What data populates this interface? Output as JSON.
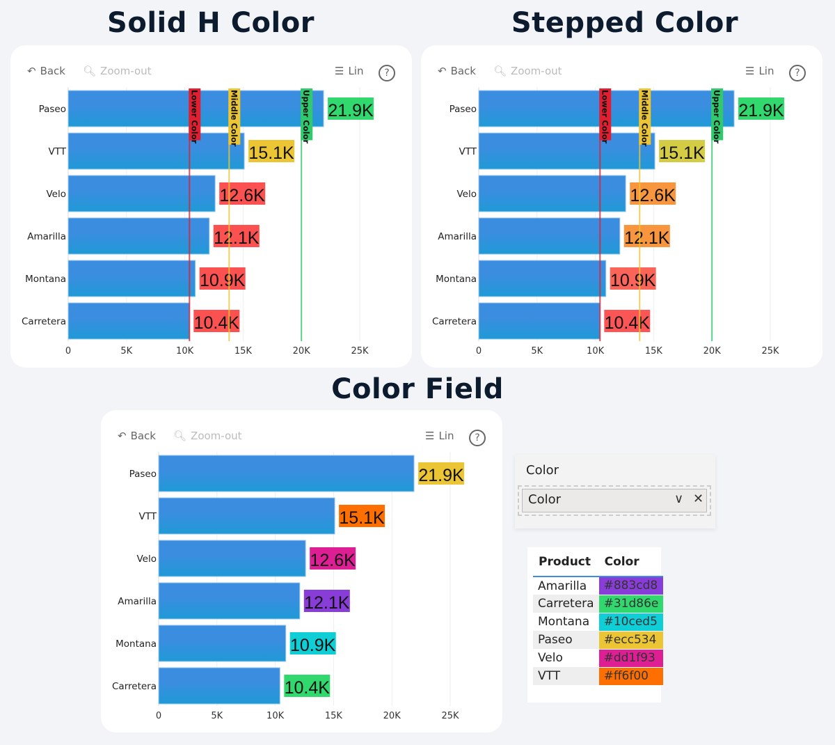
{
  "toolbar": {
    "back": "Back",
    "zoom_out": "Zoom-out",
    "scale": "Lin",
    "help": "?"
  },
  "chart_data": [
    {
      "type": "bar",
      "orientation": "horizontal",
      "title": "Solid H Color",
      "categories": [
        "Paseo",
        "VTT",
        "Velo",
        "Amarilla",
        "Montana",
        "Carretera"
      ],
      "values": [
        21.9,
        15.1,
        12.6,
        12.1,
        10.9,
        10.4
      ],
      "data_labels": [
        "21.9K",
        "15.1K",
        "12.6K",
        "12.1K",
        "10.9K",
        "10.4K"
      ],
      "label_colors": [
        "#31d86e",
        "#ecc534",
        "#fb5151",
        "#fb5151",
        "#fb5151",
        "#fb5151"
      ],
      "bar_color": "#3b8de0",
      "xlim": [
        0,
        25
      ],
      "xticks": [
        "0",
        "5K",
        "10K",
        "15K",
        "20K",
        "25K"
      ],
      "reference_lines": [
        {
          "name": "Lower Color",
          "value": 10.4,
          "color": "#e02030"
        },
        {
          "name": "Middle Color",
          "value": 13.8,
          "color": "#ecc534"
        },
        {
          "name": "Upper Color",
          "value": 20,
          "color": "#31c86e"
        }
      ]
    },
    {
      "type": "bar",
      "orientation": "horizontal",
      "title": "Stepped Color",
      "categories": [
        "Paseo",
        "VTT",
        "Velo",
        "Amarilla",
        "Montana",
        "Carretera"
      ],
      "values": [
        21.9,
        15.1,
        12.6,
        12.1,
        10.9,
        10.4
      ],
      "data_labels": [
        "21.9K",
        "15.1K",
        "12.6K",
        "12.1K",
        "10.9K",
        "10.4K"
      ],
      "label_colors": [
        "#31d86e",
        "#d4cc45",
        "#f8953f",
        "#f8953f",
        "#fb6458",
        "#fb5555"
      ],
      "bar_color": "#3b8de0",
      "xlim": [
        0,
        25
      ],
      "xticks": [
        "0",
        "5K",
        "10K",
        "15K",
        "20K",
        "25K"
      ],
      "reference_lines": [
        {
          "name": "Lower Color",
          "value": 10.4,
          "color": "#e02030"
        },
        {
          "name": "Middle Color",
          "value": 13.8,
          "color": "#ecc534"
        },
        {
          "name": "Upper Color",
          "value": 20,
          "color": "#31c86e"
        }
      ]
    },
    {
      "type": "bar",
      "orientation": "horizontal",
      "title": "Color Field",
      "categories": [
        "Paseo",
        "VTT",
        "Velo",
        "Amarilla",
        "Montana",
        "Carretera"
      ],
      "values": [
        21.9,
        15.1,
        12.6,
        12.1,
        10.9,
        10.4
      ],
      "data_labels": [
        "21.9K",
        "15.1K",
        "12.6K",
        "12.1K",
        "10.9K",
        "10.4K"
      ],
      "label_colors": [
        "#ecc534",
        "#ff6f00",
        "#dd1f93",
        "#883cd8",
        "#10ced5",
        "#31d86e"
      ],
      "bar_color": "#3b8de0",
      "xlim": [
        0,
        25
      ],
      "xticks": [
        "0",
        "5K",
        "10K",
        "15K",
        "20K",
        "25K"
      ],
      "reference_lines": []
    }
  ],
  "slicer": {
    "label": "Color",
    "value": "Color"
  },
  "color_table": {
    "headers": [
      "Product",
      "Color"
    ],
    "rows": [
      [
        "Amarilla",
        "#883cd8"
      ],
      [
        "Carretera",
        "#31d86e"
      ],
      [
        "Montana",
        "#10ced5"
      ],
      [
        "Paseo",
        "#ecc534"
      ],
      [
        "Velo",
        "#dd1f93"
      ],
      [
        "VTT",
        "#ff6f00"
      ]
    ]
  }
}
